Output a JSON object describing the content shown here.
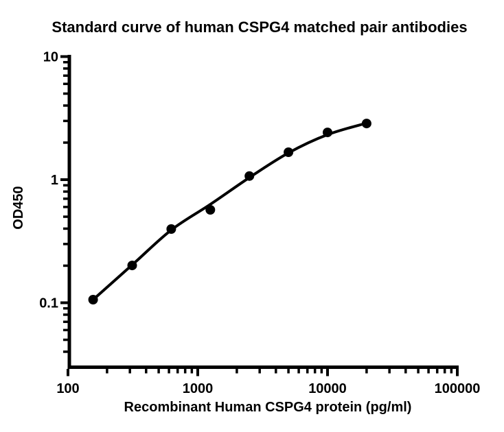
{
  "chart_data": {
    "type": "scatter",
    "title": "Standard curve of human CSPG4 matched pair antibodies",
    "xlabel": "Recombinant Human CSPG4 protein (pg/ml)",
    "ylabel": "OD450",
    "x_scale": "log10",
    "y_scale": "log10",
    "xlim": [
      100,
      100000
    ],
    "ylim": [
      0.03,
      10
    ],
    "grid": false,
    "legend": null,
    "marker_shape": "filled-circle",
    "marker_color": "#000000",
    "line_color": "#000000",
    "x": [
      156.25,
      312.5,
      625,
      1250,
      2500,
      5000,
      10000,
      20000
    ],
    "y": [
      0.106,
      0.201,
      0.397,
      0.569,
      1.07,
      1.67,
      2.42,
      2.86
    ],
    "fit_curve": {
      "description": "smooth sigmoidal fit line drawn through the points",
      "x": [
        156.25,
        312.5,
        625,
        1250,
        2500,
        5000,
        10000,
        20000
      ],
      "y": [
        0.106,
        0.203,
        0.39,
        0.63,
        1.04,
        1.65,
        2.32,
        2.88
      ]
    },
    "x_ticks": [
      {
        "value": 100,
        "label": "100"
      },
      {
        "value": 1000,
        "label": "1000"
      },
      {
        "value": 10000,
        "label": "10000"
      },
      {
        "value": 100000,
        "label": "100000"
      }
    ],
    "y_ticks": [
      {
        "value": 10,
        "label": "10"
      },
      {
        "value": 1,
        "label": "1"
      },
      {
        "value": 0.1,
        "label": "0.1"
      }
    ]
  }
}
